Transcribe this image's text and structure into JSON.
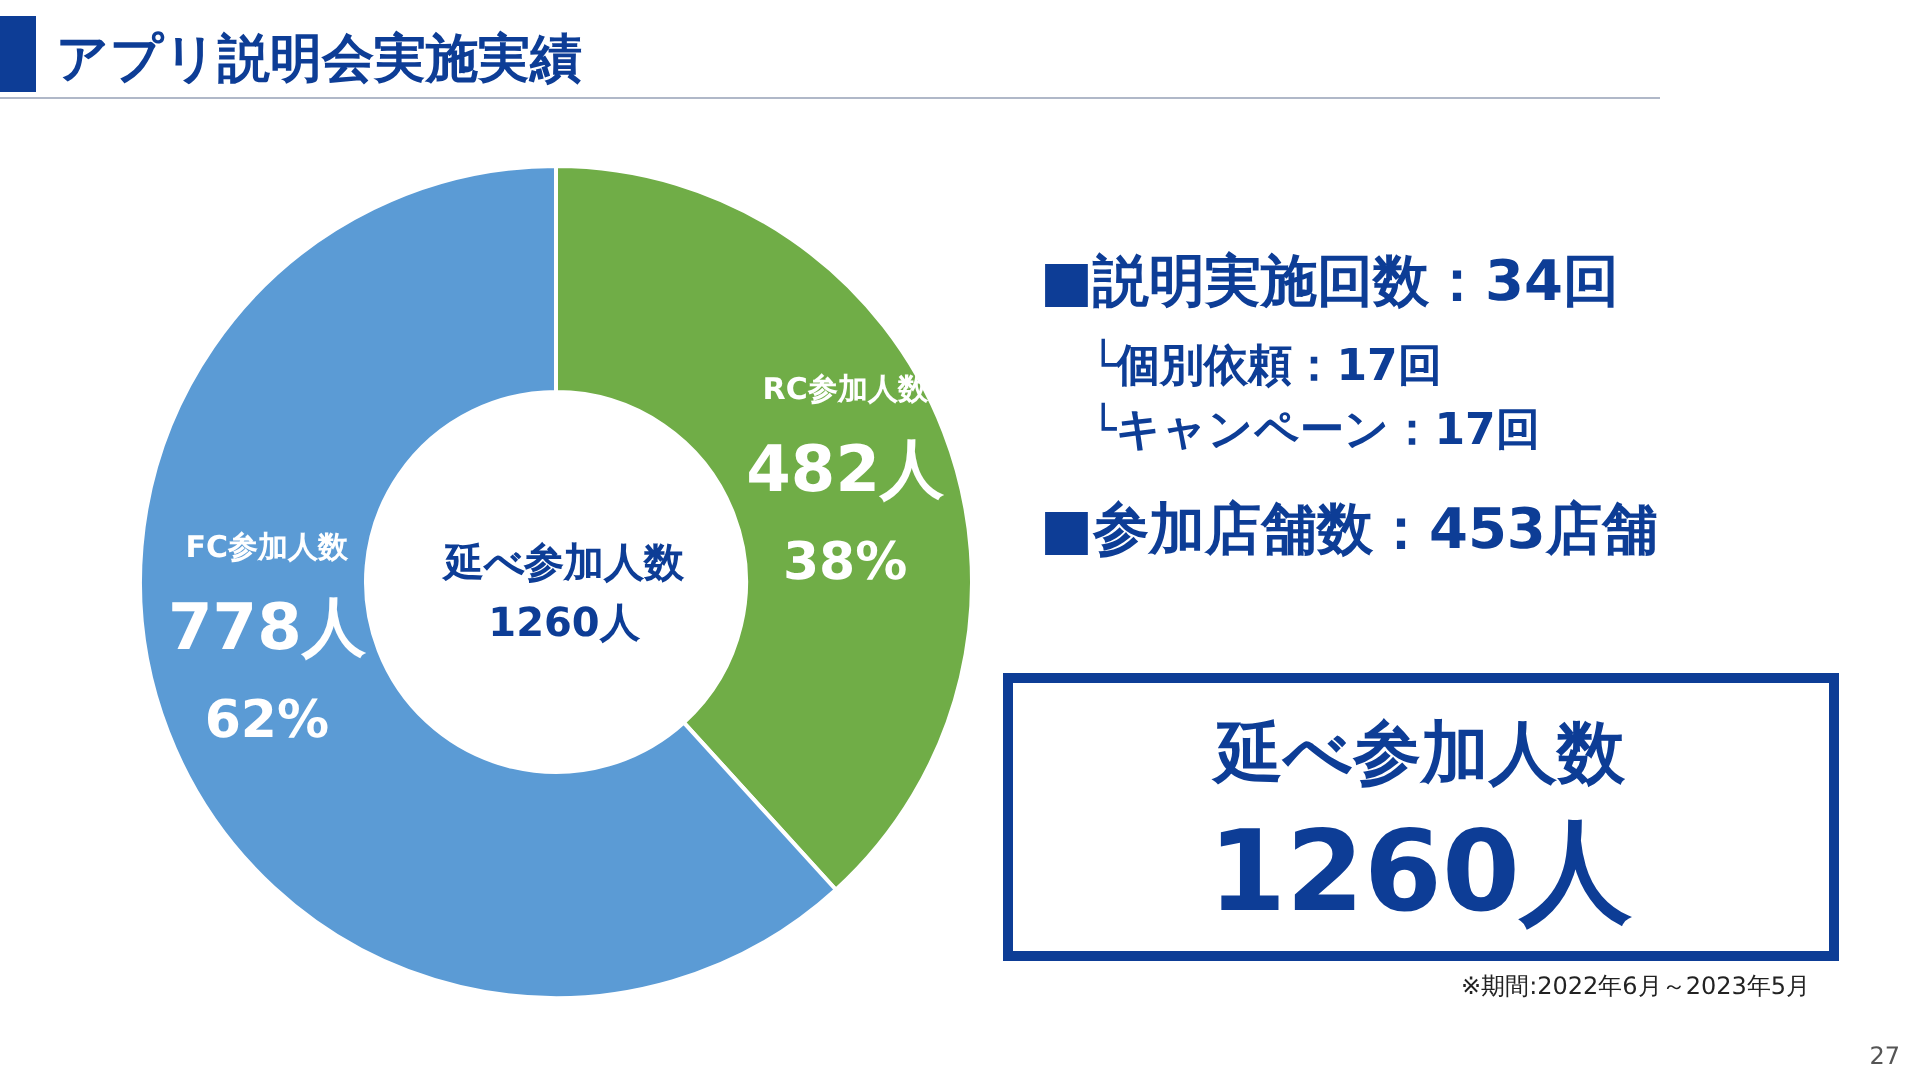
{
  "chart_data": {
    "type": "donut",
    "title": "アプリ説明会実施実績",
    "categories": [
      "RC参加人数",
      "FC参加人数"
    ],
    "values": [
      482,
      778
    ],
    "colors": [
      "#70ad47",
      "#5b9bd5"
    ],
    "value_labels": [
      "482人",
      "778人"
    ],
    "annotations": [
      "38%",
      "62%",
      "延べ参加人数",
      "1260人",
      "■説明実施回数：34回",
      "└個別依頼：17回",
      "└キャンペーン：17回",
      "■参加店舗数：453店舗",
      "延べ参加人数",
      "1260人",
      "※期間:2022年6月～2023年5月",
      "27"
    ]
  }
}
